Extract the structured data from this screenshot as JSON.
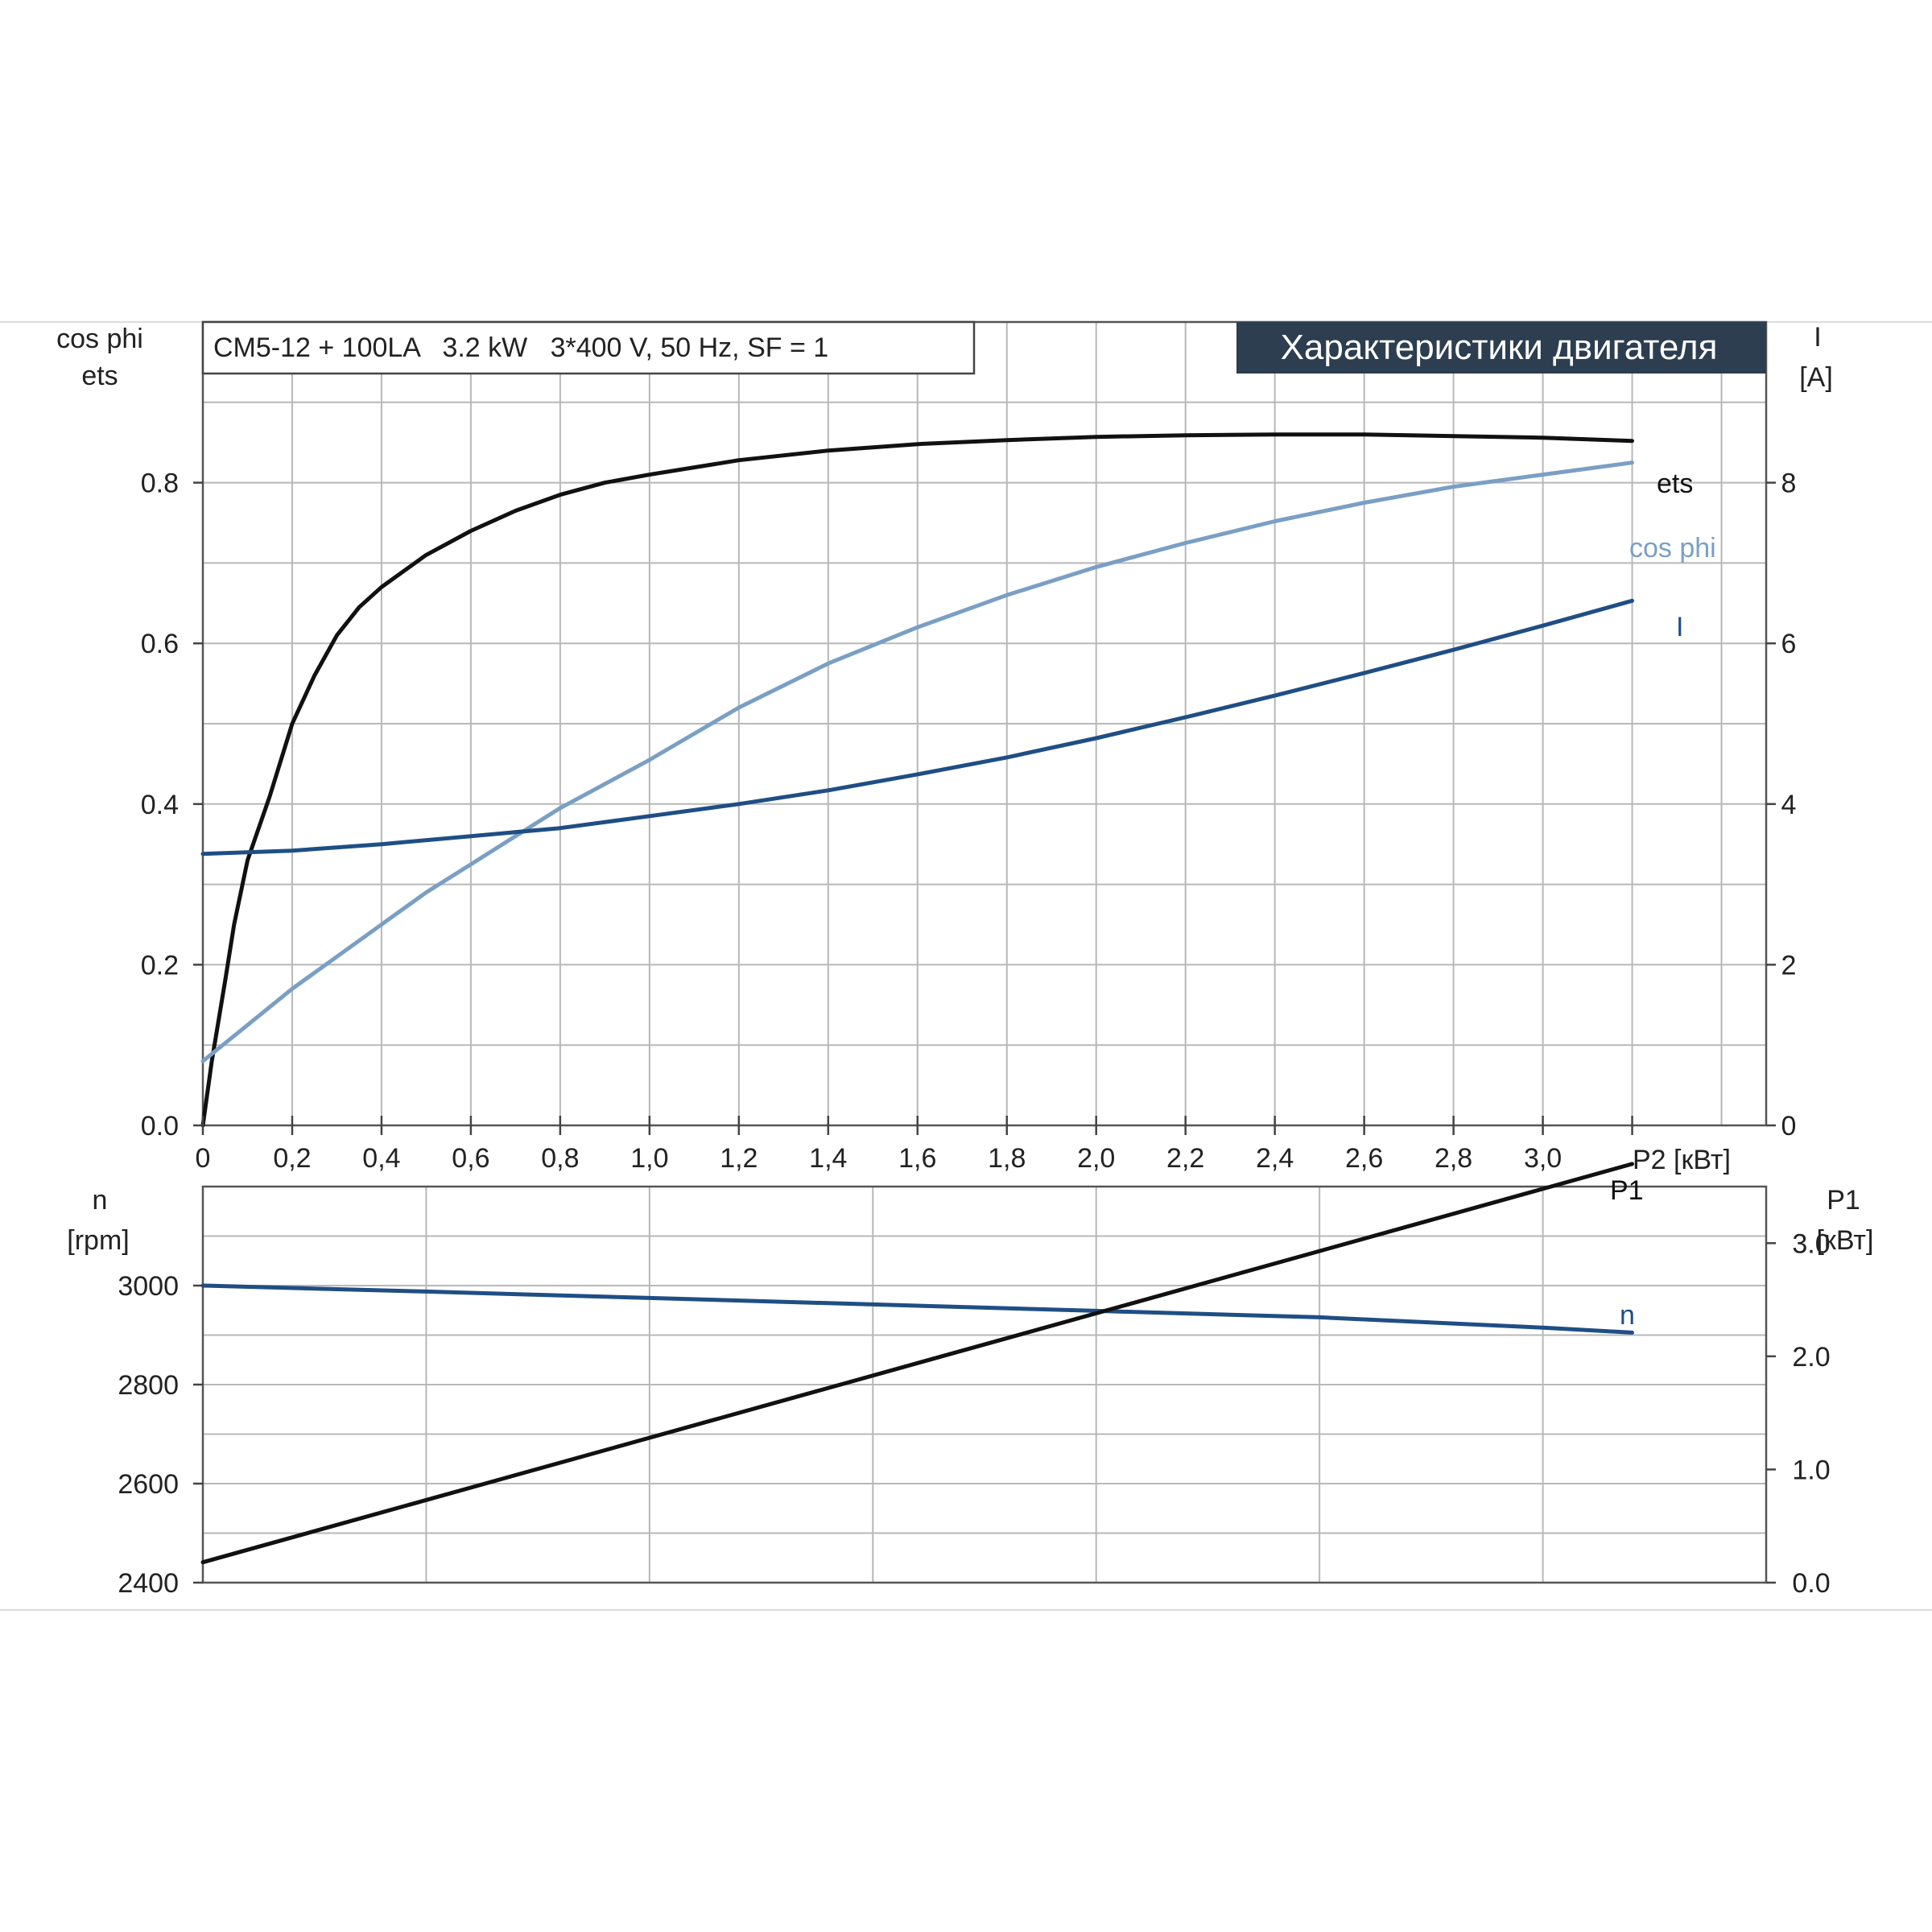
{
  "header": {
    "model": "CM5-12 + 100LA   3.2 kW   3*400 V, 50 Hz, SF = 1",
    "title": "Характеристики двигателя"
  },
  "colors": {
    "ets": "#111111",
    "cos_phi": "#7a9fc4",
    "current": "#1f4e85",
    "speed": "#1f4e85",
    "p1": "#111111",
    "title_bg": "#2c3e50",
    "grid": "#b8b8b8"
  },
  "chart_data": [
    {
      "type": "line",
      "panel": "upper",
      "xlabel": "P2 [кВт]",
      "xlim": [
        0,
        3.5
      ],
      "x_ticks": [
        "0",
        "0,2",
        "0,4",
        "0,6",
        "0,8",
        "1,0",
        "1,2",
        "1,4",
        "1,6",
        "1,8",
        "2,0",
        "2,2",
        "2,4",
        "2,6",
        "2,8",
        "3,0"
      ],
      "ylabel_left_line1": "cos phi",
      "ylabel_left_line2": "ets",
      "ylim_left": [
        0,
        1.0
      ],
      "y_ticks_left": [
        "0.0",
        "0.2",
        "0.4",
        "0.6",
        "0.8"
      ],
      "ylabel_right_line1": "I",
      "ylabel_right_line2": "[A]",
      "ylim_right": [
        0,
        10
      ],
      "y_ticks_right": [
        "0",
        "2",
        "4",
        "6",
        "8"
      ],
      "grid": true,
      "series": [
        {
          "name": "ets",
          "axis": "left",
          "x": [
            0,
            0.02,
            0.05,
            0.07,
            0.1,
            0.15,
            0.2,
            0.25,
            0.3,
            0.35,
            0.4,
            0.5,
            0.6,
            0.7,
            0.8,
            0.9,
            1.0,
            1.2,
            1.4,
            1.6,
            1.8,
            2.0,
            2.2,
            2.4,
            2.6,
            2.8,
            3.0,
            3.2
          ],
          "y": [
            0.0,
            0.08,
            0.18,
            0.25,
            0.33,
            0.41,
            0.5,
            0.56,
            0.61,
            0.645,
            0.67,
            0.71,
            0.74,
            0.765,
            0.785,
            0.8,
            0.81,
            0.828,
            0.84,
            0.848,
            0.853,
            0.857,
            0.859,
            0.86,
            0.86,
            0.858,
            0.856,
            0.852
          ]
        },
        {
          "name": "cos phi",
          "axis": "left",
          "x": [
            0,
            0.1,
            0.2,
            0.3,
            0.4,
            0.5,
            0.6,
            0.7,
            0.8,
            0.9,
            1.0,
            1.2,
            1.4,
            1.6,
            1.8,
            2.0,
            2.2,
            2.4,
            2.6,
            2.8,
            3.0,
            3.2
          ],
          "y": [
            0.08,
            0.125,
            0.17,
            0.21,
            0.25,
            0.29,
            0.325,
            0.36,
            0.395,
            0.425,
            0.455,
            0.52,
            0.575,
            0.62,
            0.66,
            0.695,
            0.725,
            0.752,
            0.775,
            0.795,
            0.81,
            0.825
          ]
        },
        {
          "name": "I",
          "axis": "right",
          "x": [
            0,
            0.2,
            0.4,
            0.6,
            0.8,
            1.0,
            1.2,
            1.4,
            1.6,
            1.8,
            2.0,
            2.2,
            2.4,
            2.6,
            2.8,
            3.0,
            3.2
          ],
          "y": [
            3.38,
            3.42,
            3.5,
            3.6,
            3.7,
            3.85,
            4.0,
            4.17,
            4.37,
            4.58,
            4.82,
            5.08,
            5.35,
            5.63,
            5.92,
            6.22,
            6.53
          ]
        }
      ]
    },
    {
      "type": "line",
      "panel": "lower",
      "xlim": [
        0,
        3.5
      ],
      "ylabel_left_line1": "n",
      "ylabel_left_line2": "[rpm]",
      "ylim_left": [
        2400,
        3200
      ],
      "y_ticks_left": [
        "2400",
        "2600",
        "2800",
        "3000"
      ],
      "ylabel_right_line1": "P1",
      "ylabel_right_line2": "[кВт]",
      "ylim_right": [
        0,
        3.5
      ],
      "y_ticks_right": [
        "0.0",
        "1.0",
        "2.0",
        "3.0"
      ],
      "grid": true,
      "series": [
        {
          "name": "n",
          "axis": "left",
          "x": [
            0,
            0.5,
            1.0,
            1.5,
            2.0,
            2.5,
            3.0,
            3.2
          ],
          "y": [
            3000,
            2988,
            2975,
            2962,
            2949,
            2936,
            2915,
            2905
          ]
        },
        {
          "name": "P1",
          "axis": "right",
          "x": [
            0,
            3.2
          ],
          "y": [
            0.18,
            3.7
          ]
        }
      ]
    }
  ]
}
